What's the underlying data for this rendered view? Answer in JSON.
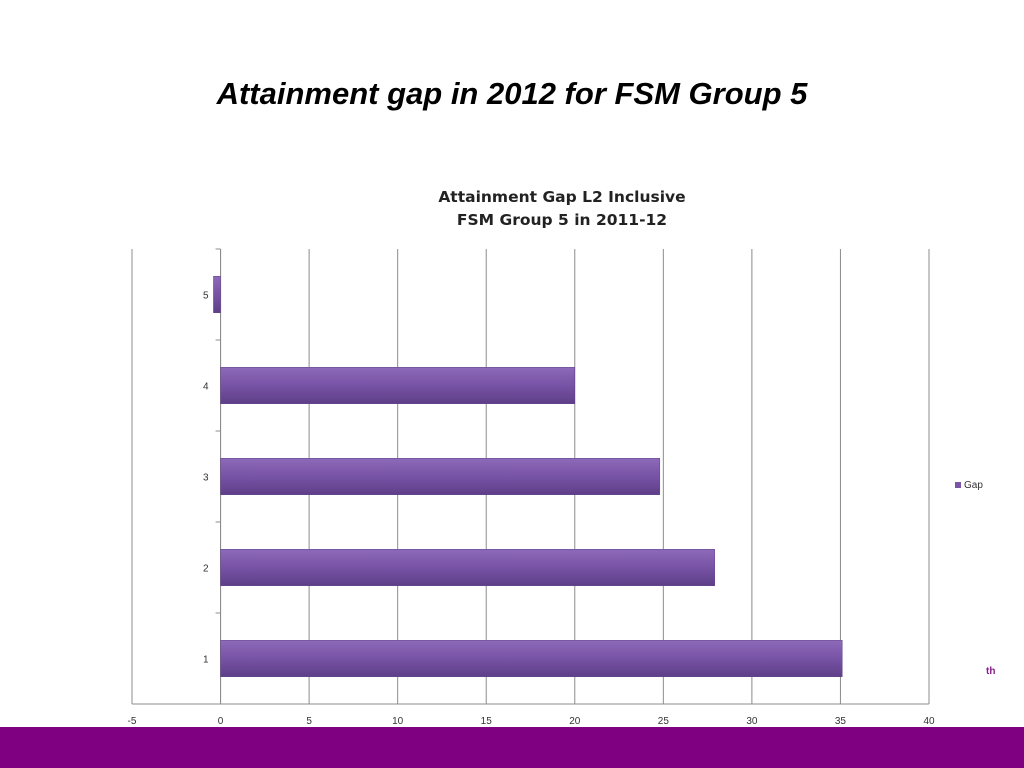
{
  "slide": {
    "title": "Attainment gap in 2012 for FSM Group 5",
    "footnote_fragment": "th"
  },
  "colors": {
    "bar": "#7a55a8",
    "bar_edge": "#5e3f88",
    "footer_band": "#7f0081",
    "footnote": "#8a1b8c"
  },
  "chart_data": {
    "type": "bar",
    "orientation": "horizontal",
    "title_lines": [
      "Attainment Gap L2 Inclusive",
      "FSM Group 5 in 2011-12"
    ],
    "categories": [
      "1",
      "2",
      "3",
      "4",
      "5"
    ],
    "series": [
      {
        "name": "Gap",
        "values": [
          35.1,
          27.9,
          24.8,
          20.0,
          -0.4
        ]
      }
    ],
    "xlim": [
      -5,
      40
    ],
    "xticks": [
      "-5",
      "0",
      "5",
      "10",
      "15",
      "20",
      "25",
      "30",
      "35",
      "40"
    ],
    "xlabel": "",
    "ylabel": "",
    "grid": "vertical",
    "legend": "right"
  }
}
